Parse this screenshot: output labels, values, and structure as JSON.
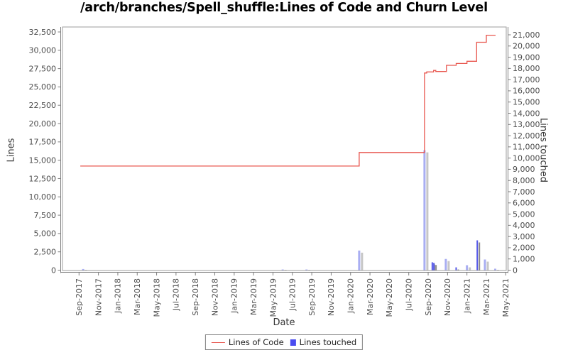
{
  "title": "/arch/branches/Spell_shuffle:Lines of Code and Churn Level",
  "colors": {
    "line": "#e8564e",
    "bar_light": "#a9aef2",
    "bar_vivid": "#5356e8",
    "shadow_light": "#c6c6c6",
    "shadow_vivid": "#8a8a8a",
    "axis": "#7f7f7f",
    "plot_border": "#9e9e9e",
    "tick_text": "#4d4d4d",
    "legend_square": "#4a4cf0"
  },
  "legend": {
    "items": [
      {
        "label": "Lines of Code",
        "type": "line"
      },
      {
        "label": "Lines touched",
        "type": "bar"
      }
    ]
  },
  "chart_data": {
    "type": "line+bar",
    "title": "/arch/branches/Spell_shuffle:Lines of Code and Churn Level",
    "xlabel": "Date",
    "ylabel_left": "Lines",
    "ylabel_right": "Lines touched",
    "grid": false,
    "legend_position": "bottom",
    "x_range": [
      "2017-09",
      "2021-05"
    ],
    "y_left_range": [
      0,
      32500
    ],
    "y_right_range": [
      0,
      21000
    ],
    "y_left_tick_step": 2500,
    "y_right_tick_step": 1000,
    "x_tick_labels": [
      "Sep-2017",
      "Nov-2017",
      "Jan-2018",
      "Mar-2018",
      "May-2018",
      "Jul-2018",
      "Sep-2018",
      "Nov-2018",
      "Jan-2019",
      "Mar-2019",
      "May-2019",
      "Jul-2019",
      "Sep-2019",
      "Nov-2019",
      "Jan-2020",
      "Mar-2020",
      "May-2020",
      "Jul-2020",
      "Sep-2020",
      "Nov-2020",
      "Jan-2021",
      "Mar-2021",
      "May-2021"
    ],
    "y_left_ticks": [
      0,
      2500,
      5000,
      7500,
      10000,
      12500,
      15000,
      17500,
      20000,
      22500,
      25000,
      27500,
      30000,
      32500
    ],
    "y_right_ticks": [
      0,
      1000,
      2000,
      3000,
      4000,
      5000,
      6000,
      7000,
      8000,
      9000,
      10000,
      11000,
      12000,
      13000,
      14000,
      15000,
      16000,
      17000,
      18000,
      19000,
      20000,
      21000
    ],
    "series": [
      {
        "name": "Lines of Code",
        "type": "line",
        "axis": "left",
        "interpolation": "step-after",
        "points": [
          [
            "2017-09-05",
            14200
          ],
          [
            "2020-01-28",
            16050
          ],
          [
            "2020-08-20",
            26900
          ],
          [
            "2020-08-27",
            27050
          ],
          [
            "2020-09-18",
            27250
          ],
          [
            "2020-09-25",
            27100
          ],
          [
            "2020-10-28",
            27950
          ],
          [
            "2020-11-28",
            28200
          ],
          [
            "2021-01-01",
            28500
          ],
          [
            "2021-02-01",
            31100
          ],
          [
            "2021-03-01",
            32050
          ],
          [
            "2021-03-30",
            32050
          ]
        ]
      },
      {
        "name": "Lines touched",
        "type": "bar",
        "axis": "right",
        "points": [
          [
            "2017-09-14",
            100,
            "light"
          ],
          [
            "2019-06-01",
            60,
            "light"
          ],
          [
            "2019-08-15",
            60,
            "light"
          ],
          [
            "2020-01-28",
            1750,
            "light"
          ],
          [
            "2020-08-20",
            10700,
            "light"
          ],
          [
            "2020-09-14",
            700,
            "vivid"
          ],
          [
            "2020-09-19",
            650,
            "vivid"
          ],
          [
            "2020-10-26",
            1000,
            "light"
          ],
          [
            "2020-11-28",
            250,
            "vivid"
          ],
          [
            "2021-01-01",
            440,
            "light"
          ],
          [
            "2021-02-03",
            2660,
            "vivid"
          ],
          [
            "2021-02-27",
            950,
            "light"
          ],
          [
            "2021-03-29",
            130,
            "light"
          ]
        ]
      }
    ]
  }
}
